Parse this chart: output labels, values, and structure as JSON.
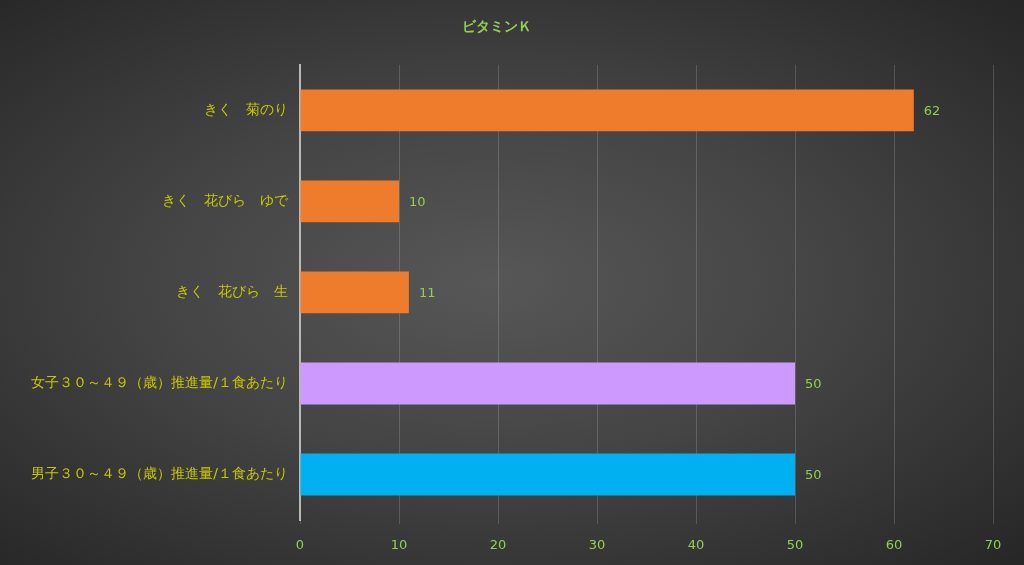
{
  "chart_data": {
    "type": "bar",
    "orientation": "horizontal",
    "title": "ビタミンＫ",
    "categories": [
      "きく　菊のり",
      "きく　花びら　ゆで",
      "きく　花びら　生",
      "女子３０～４９（歳）推進量/１食あたり",
      "男子３０～４９（歳）推進量/１食あたり"
    ],
    "values": [
      62,
      10,
      11,
      50,
      50
    ],
    "colors": [
      "#ef7b2c",
      "#ef7b2c",
      "#ef7b2c",
      "#cc99ff",
      "#00b0f0"
    ],
    "xlim": [
      0,
      70
    ],
    "xticks": [
      0,
      10,
      20,
      30,
      40,
      50,
      60,
      70
    ],
    "grid": "x",
    "data_labels": true
  }
}
